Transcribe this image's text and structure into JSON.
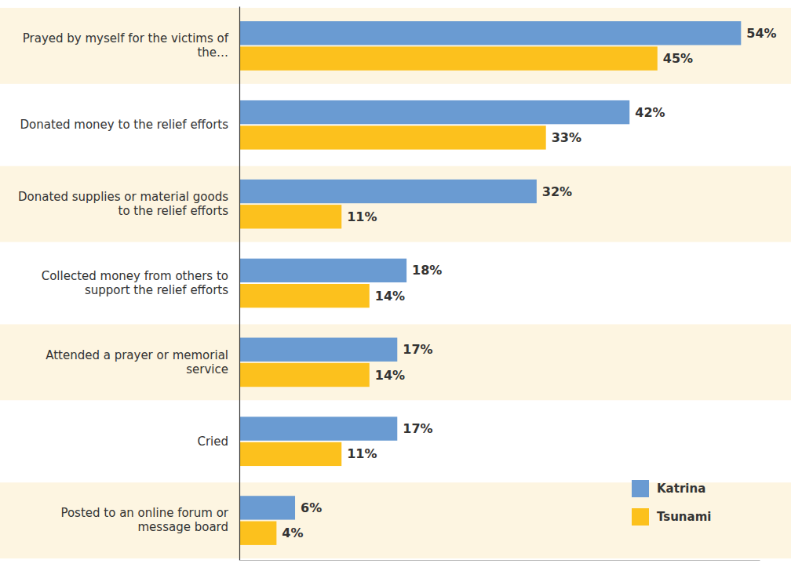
{
  "chart_data": {
    "type": "bar",
    "orientation": "horizontal",
    "categories": [
      "Prayed by myself for the victims of the…",
      "Donated money to the relief efforts",
      "Donated supplies or material goods to the relief efforts",
      "Collected money from others to support the relief efforts",
      "Attended a prayer or memorial service",
      "Cried",
      "Posted to an online forum or message board"
    ],
    "series": [
      {
        "name": "Katrina",
        "color": "#6a9bd2",
        "values": [
          54,
          42,
          32,
          18,
          17,
          17,
          6
        ],
        "value_labels": [
          "54%",
          "42%",
          "32%",
          "18%",
          "17%",
          "17%",
          "6%"
        ]
      },
      {
        "name": "Tsunami",
        "color": "#fcc11d",
        "values": [
          45,
          33,
          11,
          14,
          14,
          11,
          4
        ],
        "value_labels": [
          "45%",
          "33%",
          "11%",
          "14%",
          "14%",
          "11%",
          "4%"
        ]
      }
    ],
    "xlim": [
      0,
      56
    ],
    "data_labels": true,
    "tick_labels": "y",
    "legend": "lower right",
    "grid": false
  }
}
